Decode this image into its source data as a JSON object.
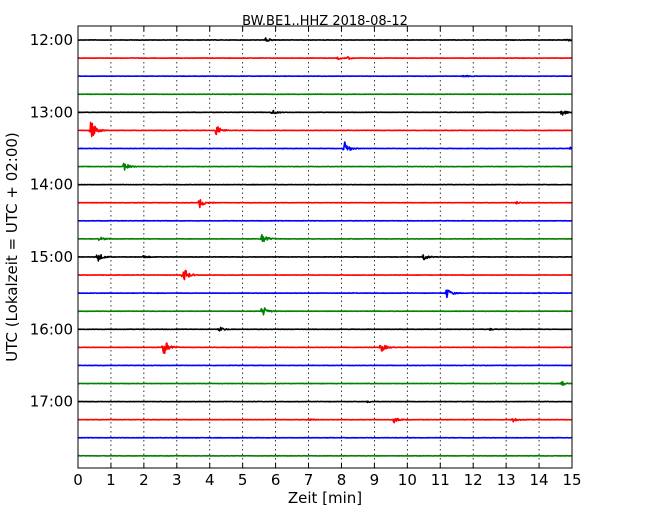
{
  "chart_data": {
    "type": "line",
    "title": "BW.BE1..HHZ 2018-08-12",
    "xlabel": "Zeit  [min]",
    "ylabel": "UTC (Lokalzeit = UTC + 02:00)",
    "xlim": [
      0,
      15
    ],
    "xticks": [
      "0",
      "1",
      "2",
      "3",
      "4",
      "5",
      "6",
      "7",
      "8",
      "9",
      "10",
      "11",
      "12",
      "13",
      "14",
      "15"
    ],
    "ytick_labels": [
      "12:00",
      "13:00",
      "14:00",
      "15:00",
      "16:00",
      "17:00"
    ],
    "grid": "vertical dotted",
    "row_minutes": 15,
    "color_cycle": [
      "#000000",
      "#ff0000",
      "#0000ff",
      "#008000"
    ],
    "traces": [
      {
        "start": "12:00",
        "color": "#000000",
        "events": [
          {
            "t": 5.7,
            "amp": 0.25
          },
          {
            "t": 14.8,
            "amp": 0.2
          }
        ]
      },
      {
        "start": "12:15",
        "color": "#ff0000",
        "events": [
          {
            "t": 7.9,
            "amp": 0.15
          },
          {
            "t": 8.2,
            "amp": 0.15
          }
        ]
      },
      {
        "start": "12:30",
        "color": "#0000ff",
        "events": [
          {
            "t": 11.7,
            "amp": 0.15
          }
        ]
      },
      {
        "start": "12:45",
        "color": "#008000",
        "events": []
      },
      {
        "start": "13:00",
        "color": "#000000",
        "events": [
          {
            "t": 5.9,
            "amp": 0.3
          },
          {
            "t": 14.7,
            "amp": 0.45
          }
        ]
      },
      {
        "start": "13:15",
        "color": "#ff0000",
        "events": [
          {
            "t": 0.4,
            "amp": 1.4
          },
          {
            "t": 4.2,
            "amp": 0.7
          }
        ]
      },
      {
        "start": "13:30",
        "color": "#0000ff",
        "events": [
          {
            "t": 8.1,
            "amp": 0.8
          },
          {
            "t": 14.95,
            "amp": 0.2
          }
        ]
      },
      {
        "start": "13:45",
        "color": "#008000",
        "events": [
          {
            "t": 1.4,
            "amp": 0.5
          }
        ]
      },
      {
        "start": "14:00",
        "color": "#000000",
        "events": []
      },
      {
        "start": "14:15",
        "color": "#ff0000",
        "events": [
          {
            "t": 3.7,
            "amp": 0.6
          },
          {
            "t": 13.3,
            "amp": 0.15
          }
        ]
      },
      {
        "start": "14:30",
        "color": "#0000ff",
        "events": []
      },
      {
        "start": "14:45",
        "color": "#008000",
        "events": [
          {
            "t": 5.6,
            "amp": 0.7
          },
          {
            "t": 0.65,
            "amp": 0.25
          }
        ]
      },
      {
        "start": "15:00",
        "color": "#000000",
        "events": [
          {
            "t": 0.6,
            "amp": 0.6
          },
          {
            "t": 2.0,
            "amp": 0.2
          },
          {
            "t": 10.5,
            "amp": 0.4
          }
        ]
      },
      {
        "start": "15:15",
        "color": "#ff0000",
        "events": [
          {
            "t": 3.2,
            "amp": 1.0
          }
        ]
      },
      {
        "start": "15:30",
        "color": "#0000ff",
        "events": [
          {
            "t": 11.2,
            "amp": 0.6
          }
        ]
      },
      {
        "start": "15:45",
        "color": "#008000",
        "events": [
          {
            "t": 5.6,
            "amp": 0.7
          }
        ]
      },
      {
        "start": "16:00",
        "color": "#000000",
        "events": [
          {
            "t": 4.3,
            "amp": 0.3
          },
          {
            "t": 12.5,
            "amp": 0.1
          }
        ]
      },
      {
        "start": "16:15",
        "color": "#ff0000",
        "events": [
          {
            "t": 2.6,
            "amp": 1.2
          },
          {
            "t": 9.2,
            "amp": 0.6
          }
        ]
      },
      {
        "start": "16:30",
        "color": "#0000ff",
        "events": []
      },
      {
        "start": "16:45",
        "color": "#008000",
        "events": [
          {
            "t": 14.7,
            "amp": 0.25
          }
        ]
      },
      {
        "start": "17:00",
        "color": "#000000",
        "events": [
          {
            "t": 8.8,
            "amp": 0.1
          }
        ]
      },
      {
        "start": "17:15",
        "color": "#ff0000",
        "events": [
          {
            "t": 9.6,
            "amp": 0.4
          },
          {
            "t": 13.2,
            "amp": 0.3
          },
          {
            "t": 7.0,
            "amp": 0.15
          }
        ]
      },
      {
        "start": "17:30",
        "color": "#0000ff",
        "events": []
      },
      {
        "start": "17:45",
        "color": "#008000",
        "events": []
      }
    ]
  }
}
